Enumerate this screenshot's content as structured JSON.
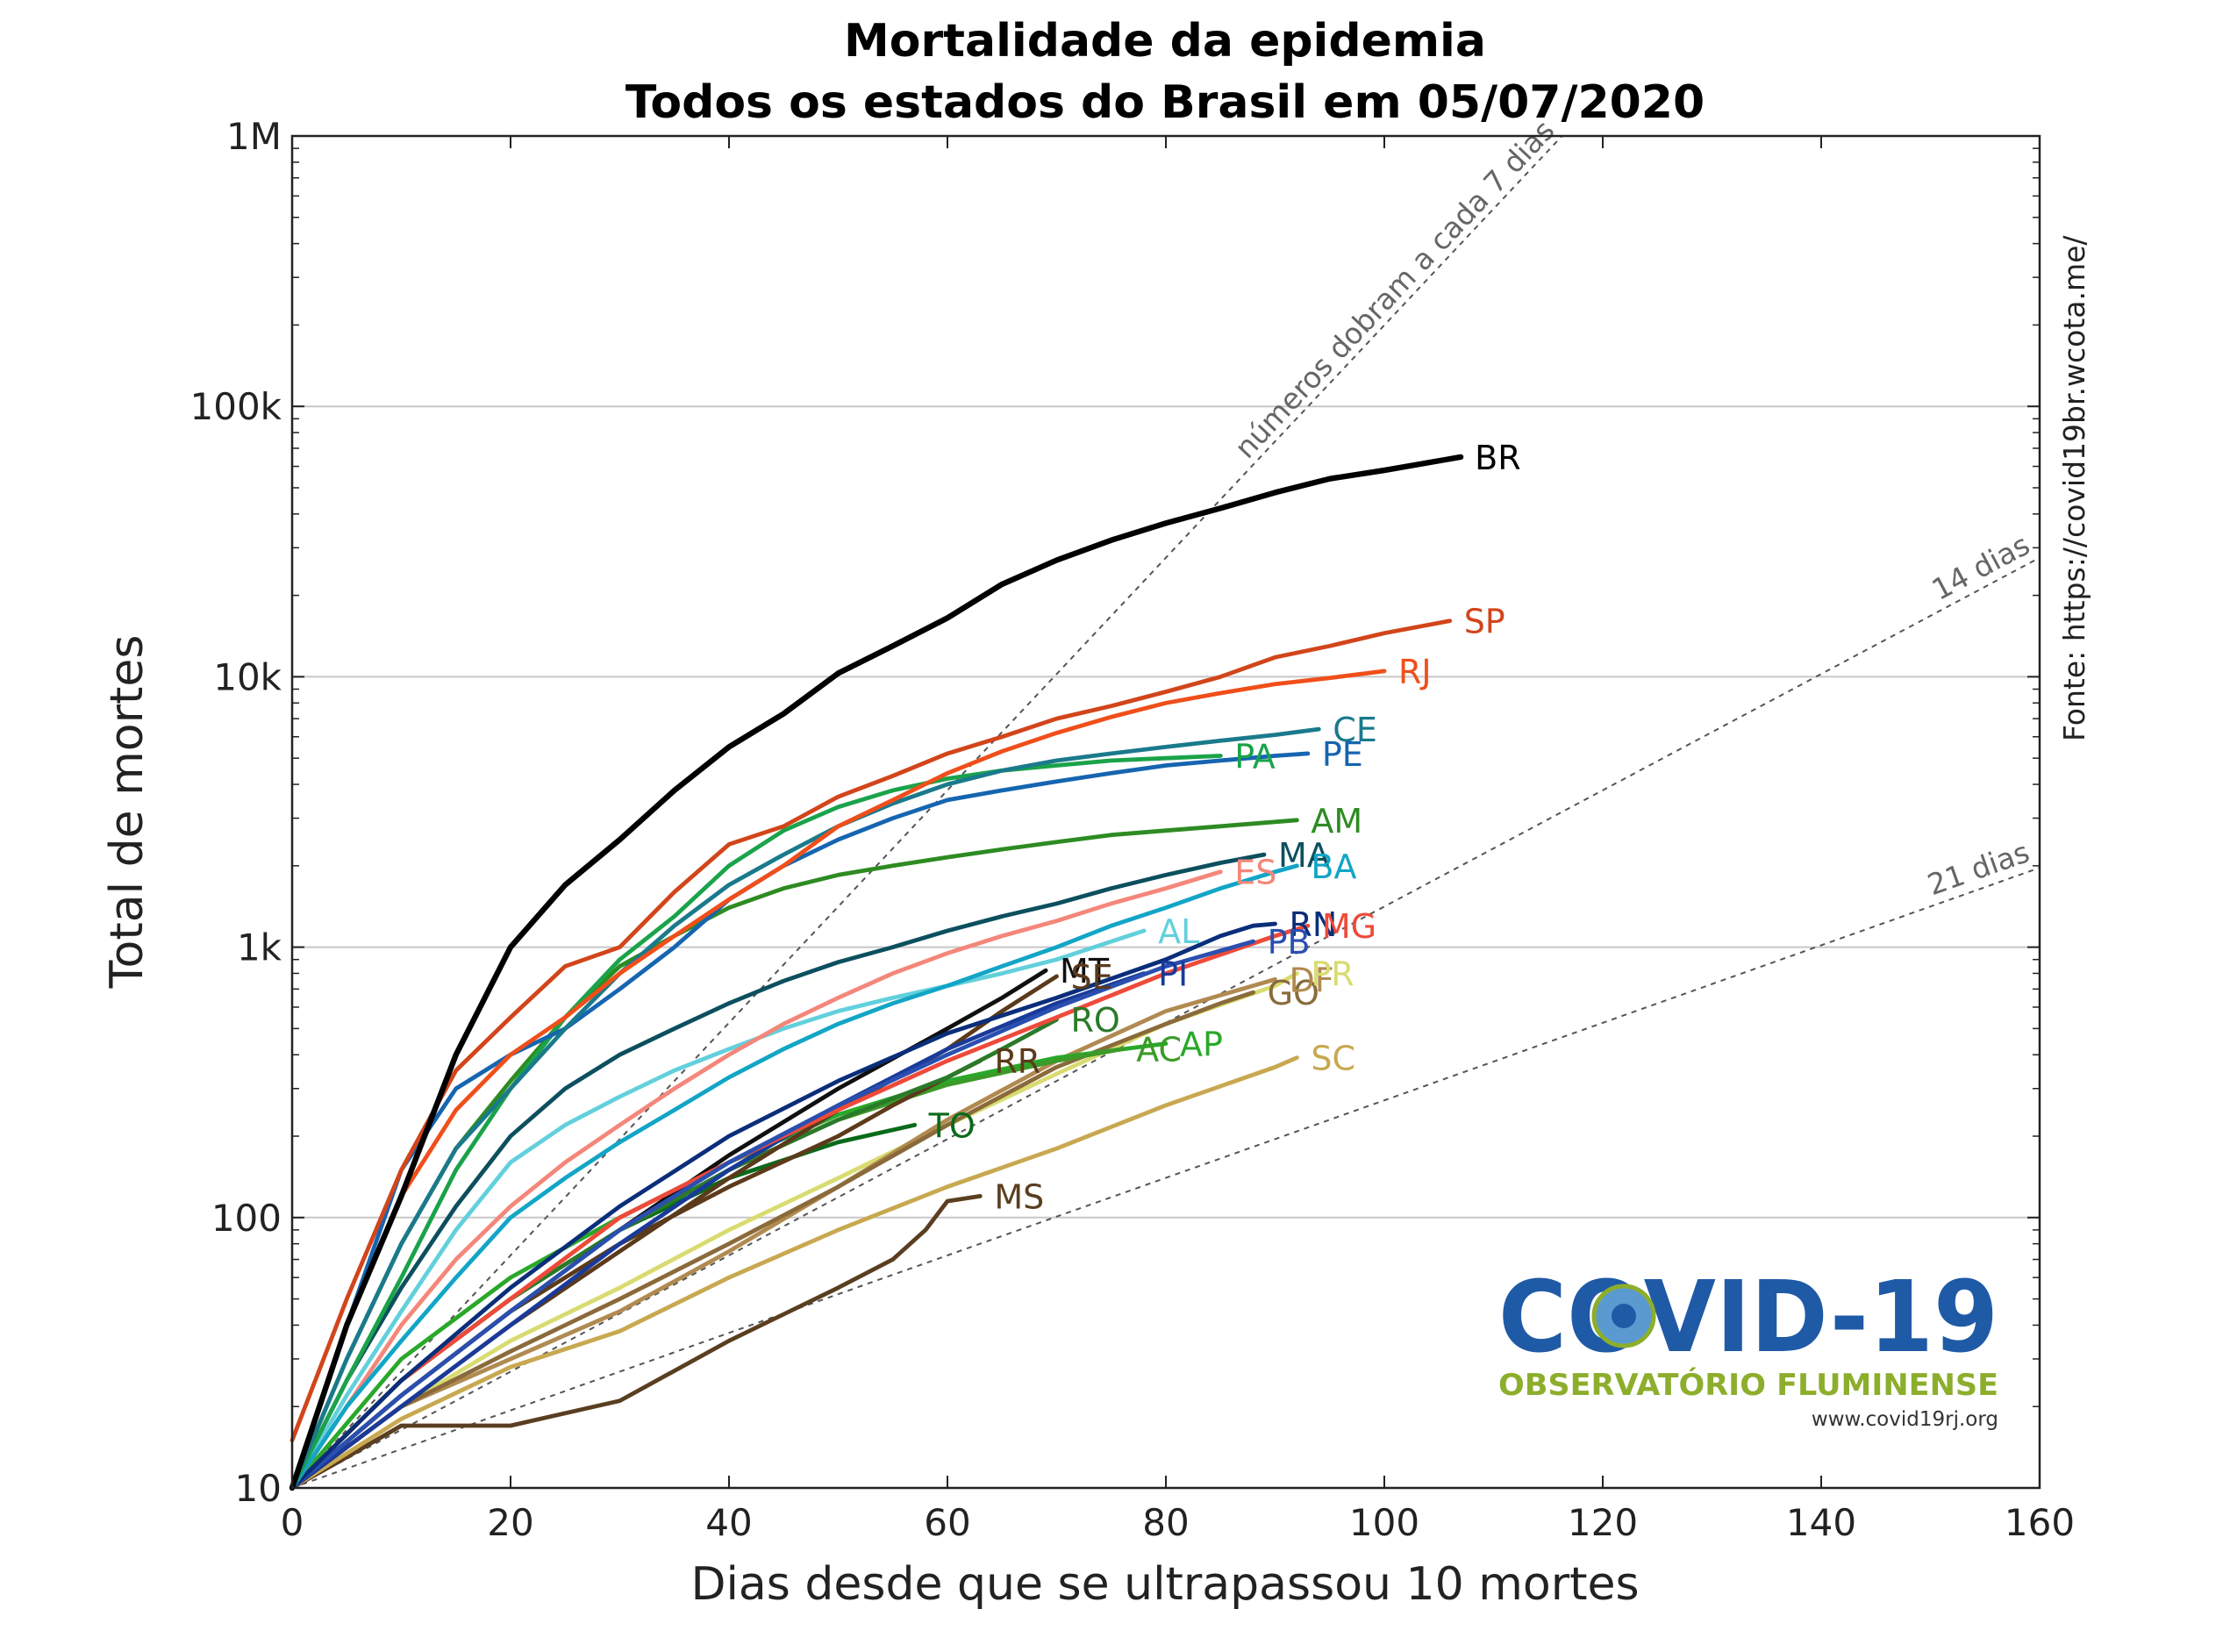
{
  "chart_data": {
    "type": "line",
    "title": [
      "Mortalidade da epidemia",
      "Todos os estados do Brasil em 05/07/2020"
    ],
    "xlabel": "Dias desde que se ultrapassou 10 mortes",
    "ylabel": "Total de mortes",
    "xlim": [
      0,
      160
    ],
    "ylim": [
      10,
      1000000
    ],
    "yscale": "log",
    "grid": "horizontal",
    "x_ticks": [
      0,
      20,
      40,
      60,
      80,
      100,
      120,
      140,
      160
    ],
    "x_tick_labels": [
      "0",
      "20",
      "40",
      "60",
      "80",
      "100",
      "120",
      "140",
      "160"
    ],
    "y_ticks": [
      10,
      100,
      1000,
      10000,
      100000,
      1000000
    ],
    "y_tick_labels": [
      "10",
      "100",
      "1k",
      "10k",
      "100k",
      "1M"
    ],
    "source_note": "Fonte: https://covid19br.wcota.me/",
    "reference_lines": [
      {
        "label": "números dobram a cada 7 dias",
        "doubling_days": 7
      },
      {
        "label": "14 dias",
        "doubling_days": 14
      },
      {
        "label": "21 dias",
        "doubling_days": 21
      }
    ],
    "series": [
      {
        "name": "BR",
        "color": "#000000",
        "width": 4,
        "x": [
          0,
          5,
          10,
          15,
          20,
          25,
          30,
          35,
          40,
          45,
          50,
          55,
          60,
          65,
          70,
          75,
          80,
          85,
          90,
          95,
          100,
          107
        ],
        "y": [
          10,
          40,
          120,
          400,
          1000,
          1700,
          2500,
          3800,
          5500,
          7300,
          10300,
          13000,
          16500,
          22000,
          27000,
          32000,
          37000,
          42000,
          48000,
          54000,
          58000,
          65000
        ]
      },
      {
        "name": "SP",
        "color": "#d2451b",
        "width": 3,
        "x": [
          0,
          5,
          10,
          15,
          20,
          25,
          30,
          35,
          40,
          45,
          50,
          55,
          60,
          65,
          70,
          75,
          80,
          85,
          90,
          95,
          100,
          106
        ],
        "y": [
          15,
          50,
          150,
          350,
          550,
          850,
          1000,
          1600,
          2400,
          2800,
          3600,
          4300,
          5200,
          6000,
          7000,
          7800,
          8800,
          10000,
          11800,
          13000,
          14500,
          16100
        ]
      },
      {
        "name": "RJ",
        "color": "#f04e1a",
        "width": 3,
        "x": [
          0,
          5,
          10,
          15,
          20,
          25,
          30,
          35,
          40,
          45,
          50,
          55,
          60,
          65,
          70,
          75,
          80,
          85,
          90,
          95,
          100
        ],
        "y": [
          10,
          40,
          120,
          250,
          400,
          550,
          800,
          1100,
          1500,
          2000,
          2800,
          3500,
          4400,
          5300,
          6200,
          7100,
          8000,
          8700,
          9400,
          9900,
          10500
        ]
      },
      {
        "name": "CE",
        "color": "#1a7a8c",
        "width": 3,
        "x": [
          0,
          5,
          10,
          15,
          20,
          25,
          30,
          35,
          40,
          45,
          50,
          55,
          60,
          65,
          70,
          75,
          80,
          85,
          90,
          94
        ],
        "y": [
          10,
          30,
          80,
          180,
          300,
          500,
          800,
          1200,
          1700,
          2200,
          2800,
          3400,
          4000,
          4500,
          4900,
          5200,
          5500,
          5800,
          6100,
          6400
        ]
      },
      {
        "name": "PE",
        "color": "#1565b0",
        "width": 3,
        "x": [
          0,
          5,
          10,
          15,
          20,
          25,
          30,
          35,
          40,
          45,
          50,
          55,
          60,
          65,
          70,
          75,
          80,
          85,
          90,
          93
        ],
        "y": [
          10,
          40,
          150,
          300,
          400,
          500,
          700,
          1000,
          1500,
          2000,
          2500,
          3000,
          3500,
          3800,
          4100,
          4400,
          4700,
          4900,
          5100,
          5200
        ]
      },
      {
        "name": "PA",
        "color": "#1aa34a",
        "width": 3,
        "x": [
          0,
          5,
          10,
          15,
          20,
          25,
          30,
          35,
          40,
          45,
          50,
          55,
          60,
          65,
          70,
          75,
          80,
          85
        ],
        "y": [
          10,
          25,
          60,
          150,
          300,
          550,
          900,
          1300,
          2000,
          2700,
          3300,
          3800,
          4200,
          4500,
          4700,
          4900,
          5000,
          5100
        ]
      },
      {
        "name": "AM",
        "color": "#2e8b22",
        "width": 3,
        "x": [
          0,
          5,
          10,
          15,
          20,
          25,
          30,
          35,
          40,
          45,
          50,
          55,
          60,
          65,
          70,
          75,
          80,
          85,
          92
        ],
        "y": [
          10,
          30,
          80,
          180,
          320,
          550,
          850,
          1100,
          1400,
          1650,
          1850,
          2000,
          2150,
          2300,
          2450,
          2600,
          2700,
          2800,
          2950
        ]
      },
      {
        "name": "MA",
        "color": "#0c4f5e",
        "width": 3,
        "x": [
          0,
          5,
          10,
          15,
          20,
          25,
          30,
          35,
          40,
          45,
          50,
          55,
          60,
          65,
          70,
          75,
          80,
          85,
          89
        ],
        "y": [
          10,
          25,
          55,
          110,
          200,
          300,
          400,
          500,
          620,
          750,
          880,
          1000,
          1150,
          1300,
          1450,
          1650,
          1850,
          2050,
          2200
        ]
      },
      {
        "name": "BA",
        "color": "#12a5c6",
        "width": 3,
        "x": [
          0,
          5,
          10,
          15,
          20,
          25,
          30,
          35,
          40,
          45,
          50,
          55,
          60,
          65,
          70,
          75,
          80,
          85,
          90,
          92
        ],
        "y": [
          10,
          20,
          35,
          60,
          100,
          140,
          190,
          250,
          330,
          420,
          520,
          620,
          720,
          850,
          1000,
          1200,
          1400,
          1650,
          1900,
          2000
        ]
      },
      {
        "name": "ES",
        "color": "#f4877a",
        "width": 3,
        "x": [
          0,
          5,
          10,
          15,
          20,
          25,
          30,
          35,
          40,
          45,
          50,
          55,
          60,
          65,
          70,
          75,
          80,
          85
        ],
        "y": [
          10,
          20,
          40,
          70,
          110,
          160,
          220,
          300,
          400,
          520,
          650,
          800,
          950,
          1100,
          1250,
          1450,
          1650,
          1900
        ]
      },
      {
        "name": "AL",
        "color": "#62d0dc",
        "width": 3,
        "x": [
          0,
          5,
          10,
          15,
          20,
          25,
          30,
          35,
          40,
          45,
          50,
          55,
          60,
          65,
          70,
          75,
          78
        ],
        "y": [
          10,
          22,
          45,
          90,
          160,
          220,
          280,
          350,
          420,
          500,
          580,
          650,
          720,
          800,
          900,
          1050,
          1150
        ]
      },
      {
        "name": "RN",
        "color": "#0a2e7a",
        "width": 3,
        "x": [
          0,
          10,
          20,
          30,
          40,
          50,
          60,
          70,
          80,
          85,
          88,
          90
        ],
        "y": [
          10,
          25,
          55,
          110,
          200,
          320,
          480,
          650,
          900,
          1100,
          1200,
          1220
        ]
      },
      {
        "name": "PB",
        "color": "#2a4fb0",
        "width": 3,
        "x": [
          0,
          10,
          20,
          30,
          40,
          50,
          60,
          70,
          80,
          88
        ],
        "y": [
          10,
          22,
          45,
          90,
          160,
          260,
          400,
          600,
          850,
          1050
        ]
      },
      {
        "name": "MG",
        "color": "#ee4a3a",
        "width": 3,
        "x": [
          0,
          10,
          20,
          30,
          40,
          50,
          60,
          70,
          80,
          90,
          93
        ],
        "y": [
          10,
          25,
          50,
          100,
          160,
          250,
          380,
          550,
          800,
          1100,
          1200
        ]
      },
      {
        "name": "PI",
        "color": "#1a3a9a",
        "width": 3,
        "x": [
          0,
          10,
          20,
          30,
          40,
          50,
          60,
          70,
          78
        ],
        "y": [
          10,
          20,
          40,
          80,
          150,
          260,
          420,
          620,
          800
        ]
      },
      {
        "name": "MT",
        "color": "#101010",
        "width": 3,
        "x": [
          0,
          10,
          20,
          30,
          40,
          50,
          60,
          65,
          69
        ],
        "y": [
          10,
          22,
          45,
          90,
          170,
          300,
          500,
          650,
          820
        ]
      },
      {
        "name": "SE",
        "color": "#5a3a1a",
        "width": 3,
        "x": [
          0,
          10,
          20,
          30,
          40,
          50,
          60,
          65,
          70
        ],
        "y": [
          10,
          20,
          40,
          75,
          140,
          250,
          420,
          580,
          780
        ]
      },
      {
        "name": "RO",
        "color": "#2a7a2a",
        "width": 3,
        "x": [
          0,
          10,
          20,
          30,
          40,
          50,
          60,
          65,
          70
        ],
        "y": [
          10,
          25,
          50,
          90,
          150,
          230,
          330,
          420,
          540
        ]
      },
      {
        "name": "RR",
        "color": "#5c3a1a",
        "width": 3,
        "x": [
          0,
          10,
          20,
          30,
          40,
          50,
          55,
          60,
          63
        ],
        "y": [
          10,
          22,
          45,
          80,
          130,
          200,
          260,
          330,
          380
        ]
      },
      {
        "name": "AC",
        "color": "#3c9a28",
        "width": 3,
        "x": [
          0,
          10,
          20,
          30,
          40,
          50,
          60,
          70,
          76
        ],
        "y": [
          10,
          25,
          50,
          90,
          150,
          230,
          310,
          380,
          420
        ]
      },
      {
        "name": "AP",
        "color": "#2aa82a",
        "width": 3,
        "x": [
          0,
          10,
          20,
          30,
          40,
          50,
          60,
          70,
          80
        ],
        "y": [
          10,
          30,
          60,
          100,
          160,
          240,
          320,
          390,
          440
        ]
      },
      {
        "name": "TO",
        "color": "#0a6a1a",
        "width": 3,
        "x": [
          0,
          10,
          20,
          30,
          40,
          50,
          57
        ],
        "y": [
          10,
          25,
          50,
          90,
          140,
          190,
          220
        ]
      },
      {
        "name": "GO",
        "color": "#8a6a3a",
        "width": 3,
        "x": [
          0,
          10,
          20,
          30,
          40,
          50,
          60,
          70,
          80,
          85,
          88
        ],
        "y": [
          10,
          20,
          32,
          50,
          80,
          130,
          220,
          360,
          520,
          620,
          680
        ]
      },
      {
        "name": "DF",
        "color": "#b08a50",
        "width": 3,
        "x": [
          0,
          10,
          20,
          30,
          40,
          50,
          60,
          70,
          80,
          90
        ],
        "y": [
          10,
          20,
          30,
          45,
          75,
          130,
          230,
          380,
          580,
          760
        ]
      },
      {
        "name": "PR",
        "color": "#d8dc70",
        "width": 3,
        "x": [
          0,
          10,
          20,
          30,
          40,
          50,
          60,
          70,
          80,
          90,
          92
        ],
        "y": [
          10,
          20,
          35,
          55,
          90,
          140,
          220,
          340,
          520,
          720,
          800
        ]
      },
      {
        "name": "SC",
        "color": "#c8a850",
        "width": 3,
        "x": [
          0,
          10,
          20,
          30,
          40,
          50,
          60,
          70,
          80,
          90,
          92
        ],
        "y": [
          10,
          18,
          28,
          38,
          60,
          90,
          130,
          180,
          260,
          360,
          390
        ]
      },
      {
        "name": "MS",
        "color": "#5a3e20",
        "width": 3,
        "x": [
          0,
          5,
          10,
          20,
          30,
          40,
          50,
          55,
          58,
          60,
          63
        ],
        "y": [
          10,
          13,
          17,
          17,
          21,
          35,
          55,
          70,
          90,
          115,
          120
        ]
      }
    ]
  },
  "logo": {
    "title": "COVID-19",
    "subtitle": "OBSERVATÓRIO FLUMINENSE",
    "url": "www.covid19rj.org"
  }
}
